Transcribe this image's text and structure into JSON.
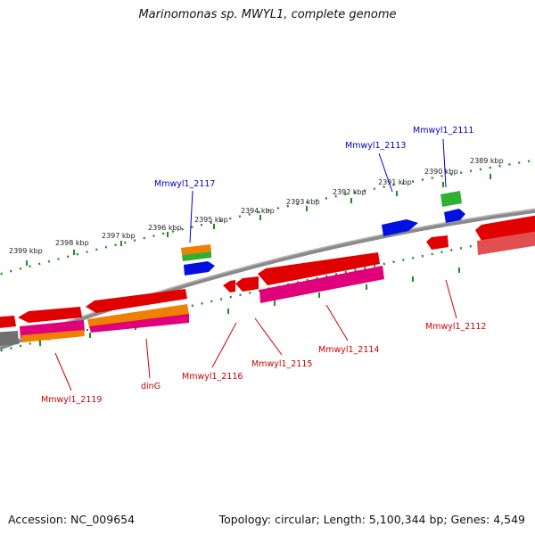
{
  "title": "Marinomonas sp. MWYL1, complete genome",
  "footer": {
    "accession": "Accession: NC_009654",
    "summary": "Topology: circular; Length: 5,100,344 bp; Genes: 4,549"
  },
  "colors": {
    "backbone": "#808080",
    "ticks": "#1e8c1e",
    "forward_label": "#0000cc",
    "reverse_label": "#cc0000",
    "red": "#e00000",
    "orange": "#f08000",
    "green": "#30b030",
    "blue": "#0010e0",
    "magenta": "#e0007a",
    "gray": "#707070",
    "pink": "#e05050"
  },
  "scale_labels": [
    "2399 kbp",
    "2398 kbp",
    "2397 kbp",
    "2396 kbp",
    "2395 kbp",
    "2394 kbp",
    "2393 kbp",
    "2392 kbp",
    "2391 kbp",
    "2390 kbp",
    "2389 kbp"
  ],
  "forward_labels": [
    "Mmwyl1_2117",
    "Mmwyl1_2113",
    "Mmwyl1_2111"
  ],
  "reverse_labels": [
    "Mmwyl1_2119",
    "dinG",
    "Mmwyl1_2116",
    "Mmwyl1_2115",
    "Mmwyl1_2114",
    "Mmwyl1_2112"
  ]
}
